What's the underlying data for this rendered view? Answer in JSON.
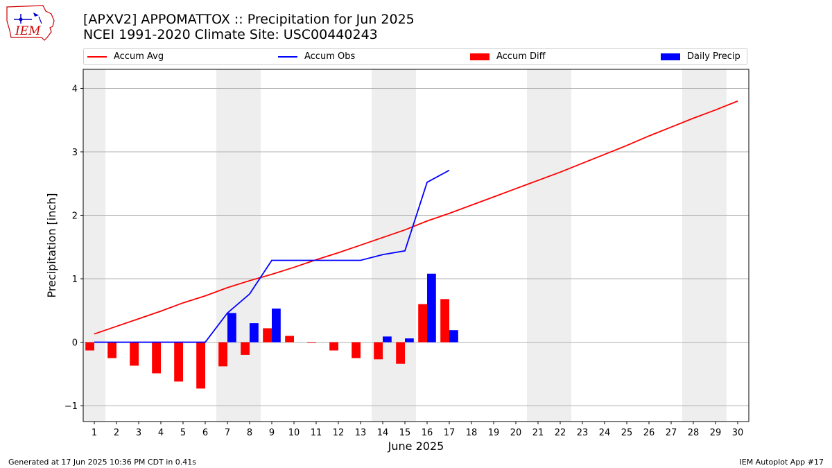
{
  "header": {
    "logo_text": "IEM",
    "title_line1": "[APXV2] APPOMATTOX :: Precipitation for Jun 2025",
    "title_line2": "NCEI 1991-2020 Climate Site: USC00440243"
  },
  "footer": {
    "generated": "Generated at 17 Jun 2025 10:36 PM CDT in 0.41s",
    "app": "IEM Autoplot App #17"
  },
  "colors": {
    "avg": "#ff0000",
    "obs": "#0000ff",
    "diff": "#ff0000",
    "daily": "#0000ff",
    "weekend_band": "#eeeeee",
    "grid": "#b0b0b0"
  },
  "chart_data": {
    "type": "bar",
    "xlabel": "June 2025",
    "ylabel": "Precipitation [inch]",
    "ylim": [
      -1.25,
      4.3
    ],
    "xlim": [
      0.5,
      30.5
    ],
    "yticks": [
      -1,
      0,
      1,
      2,
      3,
      4
    ],
    "ytick_labels": [
      "−1",
      "0",
      "1",
      "2",
      "3",
      "4"
    ],
    "x": [
      1,
      2,
      3,
      4,
      5,
      6,
      7,
      8,
      9,
      10,
      11,
      12,
      13,
      14,
      15,
      16,
      17,
      18,
      19,
      20,
      21,
      22,
      23,
      24,
      25,
      26,
      27,
      28,
      29,
      30
    ],
    "xtick_labels": [
      "1",
      "2",
      "3",
      "4",
      "5",
      "6",
      "7",
      "8",
      "9",
      "10",
      "11",
      "12",
      "13",
      "14",
      "15",
      "16",
      "17",
      "18",
      "19",
      "20",
      "21",
      "22",
      "23",
      "24",
      "25",
      "26",
      "27",
      "28",
      "29",
      "30"
    ],
    "grid": "horizontal",
    "legend_position": "top",
    "shaded_day_ranges": [
      [
        0.5,
        1.5
      ],
      [
        6.5,
        8.5
      ],
      [
        13.5,
        15.5
      ],
      [
        20.5,
        22.5
      ],
      [
        27.5,
        29.5
      ]
    ],
    "series": [
      {
        "name": "Accum Avg",
        "kind": "line",
        "x": [
          1,
          2,
          3,
          4,
          5,
          6,
          7,
          8,
          9,
          10,
          11,
          12,
          13,
          14,
          15,
          16,
          17,
          18,
          19,
          20,
          21,
          22,
          23,
          24,
          25,
          26,
          27,
          28,
          29,
          30
        ],
        "values": [
          0.13,
          0.25,
          0.37,
          0.49,
          0.62,
          0.73,
          0.86,
          0.97,
          1.07,
          1.18,
          1.3,
          1.41,
          1.53,
          1.65,
          1.77,
          1.91,
          2.03,
          2.16,
          2.29,
          2.42,
          2.55,
          2.68,
          2.82,
          2.96,
          3.1,
          3.25,
          3.39,
          3.53,
          3.66,
          3.8
        ]
      },
      {
        "name": "Accum Obs",
        "kind": "line",
        "x": [
          1,
          2,
          3,
          4,
          5,
          6,
          7,
          8,
          9,
          10,
          11,
          12,
          13,
          14,
          15,
          16,
          17
        ],
        "values": [
          0,
          0,
          0,
          0,
          0,
          0,
          0.46,
          0.76,
          1.29,
          1.29,
          1.29,
          1.29,
          1.29,
          1.38,
          1.44,
          2.52,
          2.71
        ]
      },
      {
        "name": "Accum Diff",
        "kind": "bar",
        "x": [
          1,
          2,
          3,
          4,
          5,
          6,
          7,
          8,
          9,
          10,
          11,
          12,
          13,
          14,
          15,
          16,
          17
        ],
        "values": [
          -0.13,
          -0.25,
          -0.37,
          -0.49,
          -0.62,
          -0.73,
          -0.38,
          -0.2,
          0.22,
          0.1,
          -0.01,
          -0.13,
          -0.25,
          -0.27,
          -0.34,
          0.6,
          0.68
        ]
      },
      {
        "name": "Daily Precip",
        "kind": "bar",
        "x": [
          1,
          2,
          3,
          4,
          5,
          6,
          7,
          8,
          9,
          10,
          11,
          12,
          13,
          14,
          15,
          16,
          17
        ],
        "values": [
          0,
          0,
          0,
          0,
          0,
          0,
          0.46,
          0.3,
          0.53,
          0,
          0,
          0,
          0,
          0.09,
          0.06,
          1.08,
          0.19
        ]
      }
    ]
  }
}
